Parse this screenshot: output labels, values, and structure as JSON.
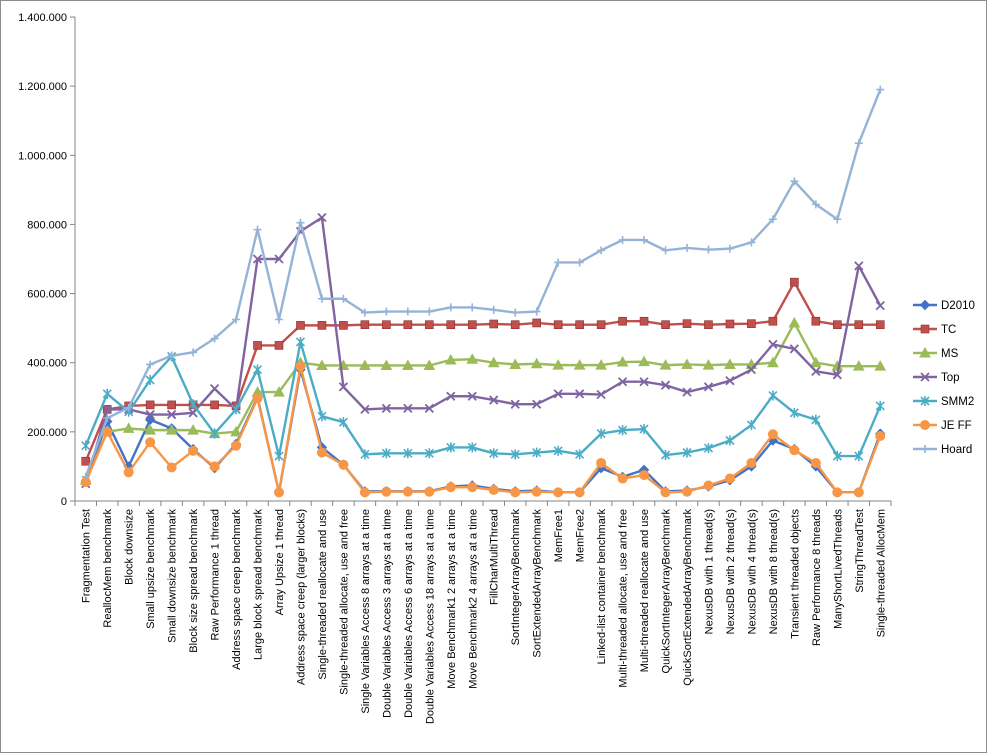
{
  "chart_data": {
    "type": "line",
    "title": "",
    "xlabel": "",
    "ylabel": "",
    "ylim": [
      0,
      1400000
    ],
    "y_ticks": [
      0,
      200000,
      400000,
      600000,
      800000,
      1000000,
      1200000,
      1400000
    ],
    "y_tick_labels": [
      "0",
      "200.000",
      "400.000",
      "600.000",
      "800.000",
      "1.000.000",
      "1.200.000",
      "1.400.000"
    ],
    "grid": false,
    "legend_position": "right",
    "categories": [
      "Fragmentation Test",
      "ReallocMem benchmark",
      "Block downsize",
      "Small upsize benchmark",
      "Small downsize benchmark",
      "Block size spread benchmark",
      "Raw Performance 1 thread",
      "Address space creep benchmark",
      "Large block spread benchmark",
      "Array Upsize 1 thread",
      "Address space creep (larger blocks)",
      "Single-threaded reallocate and use",
      "Single-threaded allocate, use and free",
      "Single Variables Access 8 arrays at a time",
      "Double Variables Access 3 arrays at a time",
      "Double Variables Access 6 arrays at a time",
      "Double Variables Access 18 arrays at a time",
      "Move Benchmark1 2 arrays at a time",
      "Move Benchmark2 4 arrays at a time",
      "FillCharMultiThread",
      "SortIntegerArrayBenchmark",
      "SortExtendedArrayBenchmark",
      "MemFree1",
      "MemFree2",
      "Linked-list container benchmark",
      "Multi-threaded allocate, use and free",
      "Multi-threaded reallocate and use",
      "QuickSortIntegerArrayBenchmark",
      "QuickSortExtendedArrayBenchmark",
      "NexusDB with 1 thread(s)",
      "NexusDB with 2 thread(s)",
      "NexusDB with 4 thread(s)",
      "NexusDB with 8 thread(s)",
      "Transient threaded objects",
      "Raw Performance 8 threads",
      "ManyShortLivedThreads",
      "StringThreadTest",
      "Single-threaded AllocMem"
    ],
    "series": [
      {
        "name": "D2010",
        "color": "#4472c4",
        "marker": "diamond",
        "values": [
          55000,
          230000,
          100000,
          235000,
          210000,
          150000,
          95000,
          165000,
          300000,
          25000,
          380000,
          155000,
          105000,
          28000,
          28000,
          28000,
          28000,
          42000,
          45000,
          35000,
          28000,
          30000,
          25000,
          25000,
          95000,
          70000,
          90000,
          28000,
          30000,
          42000,
          60000,
          100000,
          175000,
          150000,
          100000,
          25000,
          25000,
          195000
        ]
      },
      {
        "name": "TC",
        "color": "#c0504d",
        "marker": "square",
        "values": [
          115000,
          265000,
          275000,
          278000,
          278000,
          278000,
          278000,
          275000,
          450000,
          450000,
          508000,
          508000,
          508000,
          510000,
          510000,
          510000,
          510000,
          510000,
          510000,
          512000,
          510000,
          515000,
          510000,
          510000,
          510000,
          520000,
          520000,
          510000,
          513000,
          510000,
          512000,
          513000,
          520000,
          633000,
          520000,
          510000,
          510000,
          510000
        ]
      },
      {
        "name": "MS",
        "color": "#9bbb59",
        "marker": "triangle",
        "values": [
          60000,
          200000,
          210000,
          205000,
          205000,
          205000,
          195000,
          200000,
          315000,
          315000,
          400000,
          392000,
          392000,
          392000,
          392000,
          392000,
          392000,
          408000,
          410000,
          400000,
          395000,
          397000,
          393000,
          393000,
          393000,
          402000,
          403000,
          393000,
          395000,
          393000,
          395000,
          395000,
          400000,
          515000,
          400000,
          390000,
          390000,
          390000
        ]
      },
      {
        "name": "Top",
        "color": "#8064a2",
        "marker": "x",
        "values": [
          50000,
          265000,
          265000,
          250000,
          250000,
          255000,
          325000,
          265000,
          700000,
          700000,
          780000,
          820000,
          330000,
          265000,
          268000,
          268000,
          268000,
          303000,
          303000,
          292000,
          280000,
          280000,
          310000,
          310000,
          308000,
          345000,
          345000,
          335000,
          315000,
          330000,
          348000,
          380000,
          453000,
          440000,
          375000,
          365000,
          680000,
          565000
        ]
      },
      {
        "name": "SMM2",
        "color": "#4bacc6",
        "marker": "star",
        "values": [
          160000,
          310000,
          258000,
          350000,
          418000,
          280000,
          195000,
          265000,
          380000,
          130000,
          460000,
          245000,
          228000,
          135000,
          138000,
          138000,
          138000,
          155000,
          155000,
          138000,
          135000,
          140000,
          145000,
          135000,
          195000,
          205000,
          208000,
          133000,
          140000,
          153000,
          175000,
          220000,
          305000,
          255000,
          235000,
          130000,
          130000,
          275000
        ]
      },
      {
        "name": "JE FF",
        "color": "#f79646",
        "marker": "circle",
        "values": [
          55000,
          200000,
          83000,
          170000,
          97000,
          145000,
          100000,
          160000,
          297000,
          25000,
          390000,
          140000,
          105000,
          25000,
          27000,
          27000,
          27000,
          40000,
          40000,
          32000,
          25000,
          27000,
          25000,
          25000,
          110000,
          65000,
          75000,
          25000,
          27000,
          45000,
          65000,
          110000,
          193000,
          147000,
          110000,
          25000,
          25000,
          188000
        ]
      },
      {
        "name": "Hoard",
        "color": "#95b3d7",
        "marker": "plus",
        "values": [
          70000,
          240000,
          270000,
          395000,
          420000,
          430000,
          470000,
          525000,
          785000,
          525000,
          805000,
          585000,
          585000,
          545000,
          548000,
          548000,
          548000,
          560000,
          560000,
          553000,
          545000,
          548000,
          690000,
          690000,
          725000,
          755000,
          755000,
          725000,
          732000,
          727000,
          730000,
          748000,
          815000,
          925000,
          858000,
          815000,
          1035000,
          1190000
        ]
      }
    ]
  }
}
